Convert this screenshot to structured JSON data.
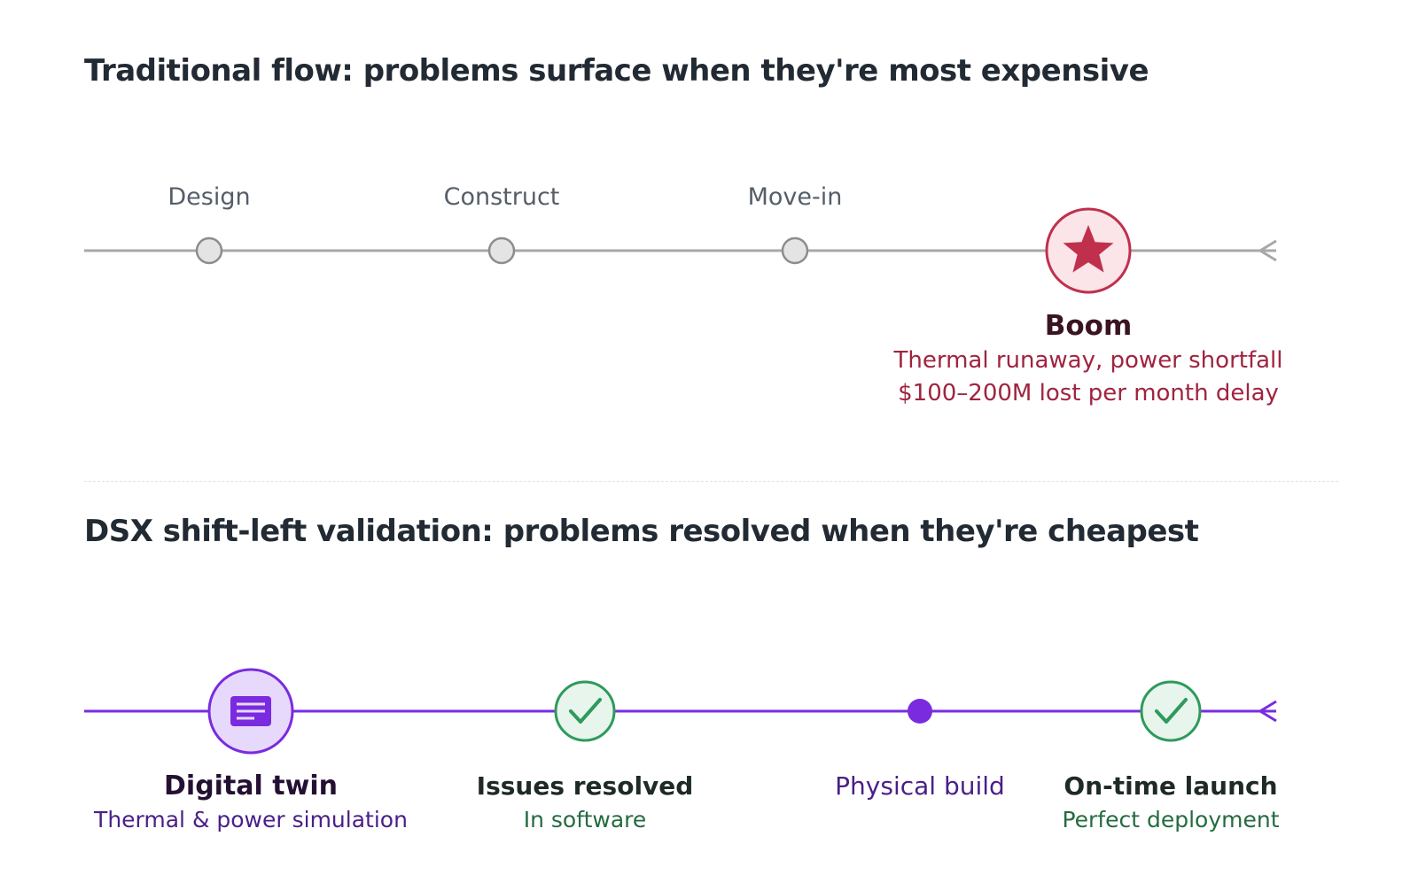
{
  "top_section": {
    "title": "Traditional flow: problems surface when they're most expensive",
    "stages": [
      {
        "label": "Design"
      },
      {
        "label": "Construct"
      },
      {
        "label": "Move-in"
      }
    ],
    "event": {
      "label": "Boom",
      "line1": "Thermal runaway, power shortfall",
      "line2": "$100–200M lost per month delay",
      "icon": "star-icon"
    }
  },
  "bottom_section": {
    "title": "DSX shift-left validation: problems resolved when they're cheapest",
    "stages": [
      {
        "label": "Digital twin",
        "sub": "Thermal & power simulation",
        "icon": "document-icon"
      },
      {
        "label": "Issues resolved",
        "sub": "In software",
        "icon": "check-icon"
      },
      {
        "label": "Physical build",
        "sub": "",
        "icon": "dot-icon"
      },
      {
        "label": "On-time launch",
        "sub": "Perfect deployment",
        "icon": "check-icon"
      }
    ]
  },
  "colors": {
    "gray_line": "#a8a8a8",
    "danger": "#c0304d",
    "danger_fill": "#fbe5e9",
    "purple": "#7a2be0",
    "purple_fill": "#e6d9fb",
    "green": "#2e9a5c",
    "green_fill": "#e7f5ec",
    "title": "#222a33"
  }
}
